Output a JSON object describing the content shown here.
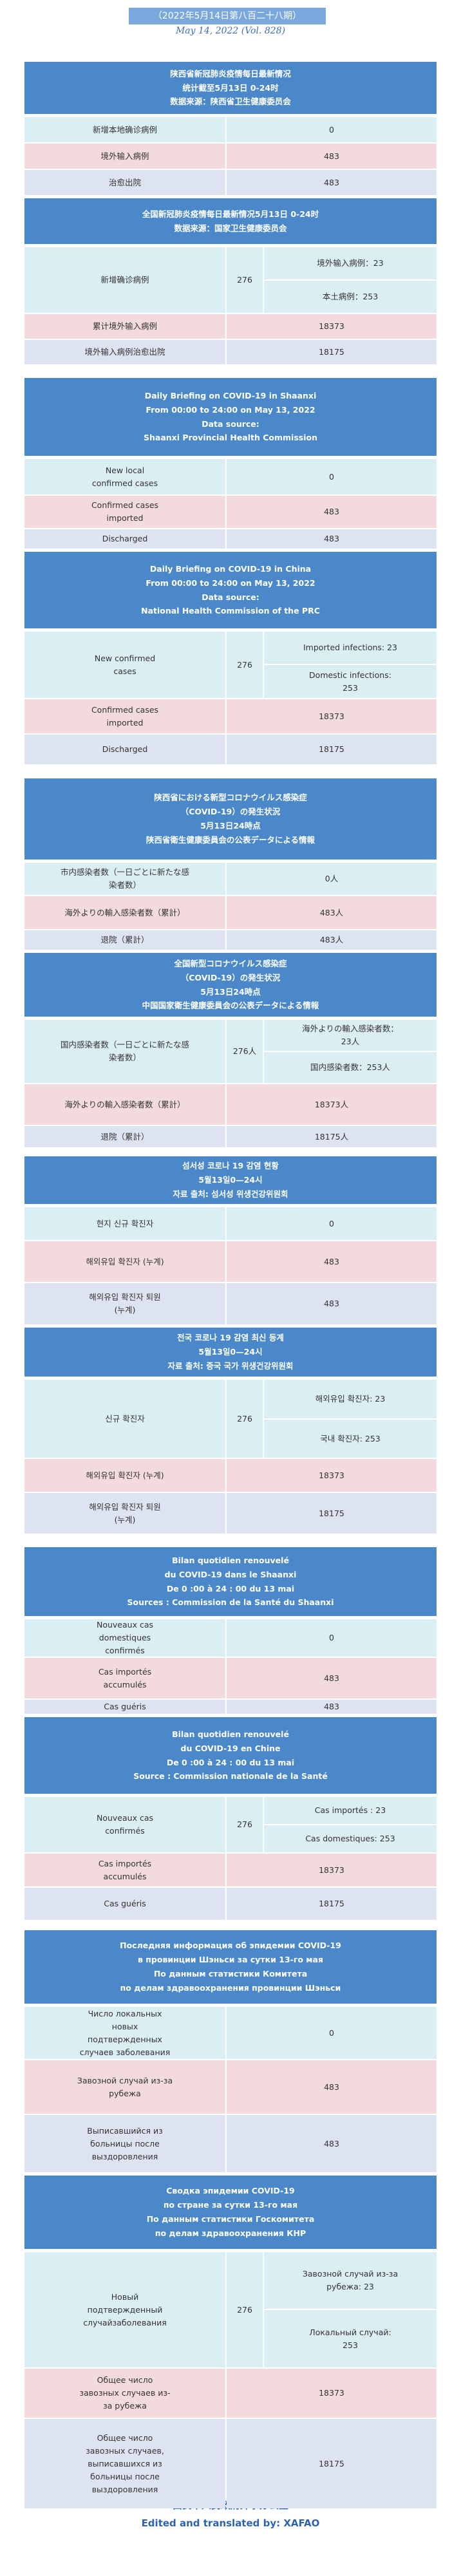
{
  "header": {
    "issue": "（2022年5月14日第八百二十八期）",
    "date": "May 14, 2022 (Vol. 828)"
  },
  "sections": [
    {
      "provincial": {
        "title_lines": [
          "陕西省新冠肺炎疫情每日最新情况",
          "统计截至5月13日 0-24时",
          "数据来源：陕西省卫生健康委员会"
        ],
        "rows": [
          {
            "label": "新增本地确诊病例",
            "value": 0
          },
          {
            "label": "境外输入病例",
            "value": 483
          },
          {
            "label": "治愈出院",
            "value": 483
          }
        ]
      },
      "national": {
        "title_lines": [
          "全国新冠肺炎疫情每日最新情况5月13日 0-24时",
          "数据来源：国家卫生健康委员会"
        ],
        "new_cases": {
          "label": "新增确诊病例",
          "value": 276,
          "breakdown": [
            {
              "label": "境外输入病例：",
              "value": 23
            },
            {
              "label": "本土病例：",
              "value": 253
            }
          ]
        },
        "rows": [
          {
            "label": "累计境外输入病例",
            "value": 18373
          },
          {
            "label": "境外输入病例治愈出院",
            "value": 18175
          }
        ]
      }
    },
    {
      "provincial": {
        "title_lines": [
          "Daily Briefing on COVID-19 in Shaanxi",
          "From 00:00 to 24:00 on May 13, 2022",
          "Data source:",
          "Shaanxi Provincial Health Commission"
        ],
        "rows": [
          {
            "label": "New local confirmed cases",
            "value": 0
          },
          {
            "label": "Confirmed cases imported",
            "value": 483
          },
          {
            "label": "Discharged",
            "value": 483
          }
        ]
      },
      "national": {
        "title_lines": [
          "Daily Briefing on COVID-19 in China",
          "From 00:00 to 24:00 on  May 13, 2022",
          "Data source:",
          "National Health Commission of the PRC"
        ],
        "new_cases": {
          "label": "New confirmed cases",
          "value": 276,
          "breakdown": [
            {
              "label": "Imported infections: ",
              "value": 23
            },
            {
              "label": "Domestic infections: ",
              "value": 253
            }
          ]
        },
        "rows": [
          {
            "label": "Confirmed cases imported",
            "value": 18373
          },
          {
            "label": "Discharged",
            "value": 18175
          }
        ]
      }
    },
    {
      "provincial": {
        "title_lines": [
          "陕西省における新型コロナウイルス感染症",
          "（COVID-19）の発生状況",
          "5月13日24時点",
          "陕西省衛生健康委員会の公表データによる情報"
        ],
        "rows": [
          {
            "label": "市内感染者数（一日ごとに新たな感染者数）",
            "value": "0人"
          },
          {
            "label": "海外よりの輸入感染者数（累計）",
            "value": "483人"
          },
          {
            "label": "退院（累計）",
            "value": "483人"
          }
        ]
      },
      "national": {
        "title_lines": [
          "全国新型コロナウイルス感染症",
          "（COVID-19）の発生状況",
          "5月13日24時点",
          "中国国家衛生健康委員会の公表データによる情報"
        ],
        "new_cases": {
          "label": "国内感染者数（一日ごとに新たな感染者数）",
          "value": "276人",
          "breakdown": [
            {
              "label": "海外よりの輸入感染者数：",
              "value": "23人"
            },
            {
              "label": "国内感染者数：",
              "value": "253人"
            }
          ]
        },
        "rows": [
          {
            "label": "海外よりの輸入感染者数（累計）",
            "value": "18373人"
          },
          {
            "label": "退院（累計）",
            "value": "18175人"
          }
        ]
      }
    },
    {
      "provincial": {
        "title_lines": [
          "섬서성 코로나 19 감염 현황",
          "5월13일0—24시",
          "자료 출처: 섬서성 위생건강위원회"
        ],
        "rows": [
          {
            "label": "현지 신규 확진자",
            "value": 0
          },
          {
            "label": "해외유입 확진자 (누계)",
            "value": 483
          },
          {
            "label": "해외유입 확진자 퇴원 (누계)",
            "value": 483
          }
        ]
      },
      "national": {
        "title_lines": [
          "전국 코로나 19 감염 최신 동계",
          "5월13일0—24시",
          "자료 출처: 중국 국가 위생건강위원회"
        ],
        "new_cases": {
          "label": "신규 확진자",
          "value": 276,
          "breakdown": [
            {
              "label": "해외유입 확진자: ",
              "value": 23
            },
            {
              "label": "국내 확진자: ",
              "value": 253
            }
          ]
        },
        "rows": [
          {
            "label": "해외유입 확진자 (누계)",
            "value": 18373
          },
          {
            "label": "해외유입 확진자 퇴원 (누계)",
            "value": 18175
          }
        ]
      }
    },
    {
      "provincial": {
        "title_lines": [
          "Bilan quotidien renouvelé",
          "du COVID-19 dans le Shaanxi",
          "De 0 :00 à 24 : 00 du 13 mai",
          "Sources : Commission de la Santé du Shaanxi"
        ],
        "rows": [
          {
            "label": "Nouveaux cas domestiques confirmés",
            "value": 0
          },
          {
            "label": "Cas importés accumulés",
            "value": 483
          },
          {
            "label": "Cas guéris",
            "value": 483
          }
        ]
      },
      "national": {
        "title_lines": [
          "Bilan quotidien renouvelé",
          "du COVID-19 en Chine",
          "De 0 :00 à 24 : 00 du 13 mai",
          "Source : Commission nationale de la Santé"
        ],
        "new_cases": {
          "label": "Nouveaux cas confirmés",
          "value": 276,
          "breakdown": [
            {
              "label": "Cas importés : ",
              "value": 23
            },
            {
              "label": "Cas domestiques: ",
              "value": 253
            }
          ]
        },
        "rows": [
          {
            "label": "Cas importés accumulés",
            "value": 18373
          },
          {
            "label": "Cas guéris",
            "value": 18175
          }
        ]
      }
    },
    {
      "provincial": {
        "title_lines": [
          "Последняя информация об эпидемии COVID-19",
          "в провинции Шэньси за сутки 13-го мая",
          "По данным статистики Комитета",
          "по делам здравоохранения провинции Шэньси"
        ],
        "rows": [
          {
            "label": "Число локальных новых подтвержденных случаев заболевания",
            "value": 0
          },
          {
            "label": "Завозной случай из-за рубежа",
            "value": 483
          },
          {
            "label": "Выписавшийся из больницы после выздоровления",
            "value": 483
          }
        ]
      },
      "national": {
        "title_lines": [
          "Сводка эпидемии COVID-19",
          "по стране за сутки 13-го мая",
          "По данным статистики Госкомитета",
          "по делам здравоохранения КНР"
        ],
        "new_cases": {
          "label": "Новый подтвержденный случайзаболевания",
          "value": 276,
          "breakdown": [
            {
              "label": "Завозной случай из-за рубежа: ",
              "value": 23
            },
            {
              "label": "Локальный случай: ",
              "value": 253
            }
          ]
        },
        "rows": [
          {
            "label": "Общее число завозных случаев из-за рубежа",
            "value": 18373
          },
          {
            "label": "Общее число завозных случаев, выписавшихся из больницы после выздоровления",
            "value": 18175
          }
        ]
      }
    }
  ],
  "footer": {
    "office": "西安市人民政府外事办公室",
    "credit": "Edited and translated by: XAFAO"
  }
}
